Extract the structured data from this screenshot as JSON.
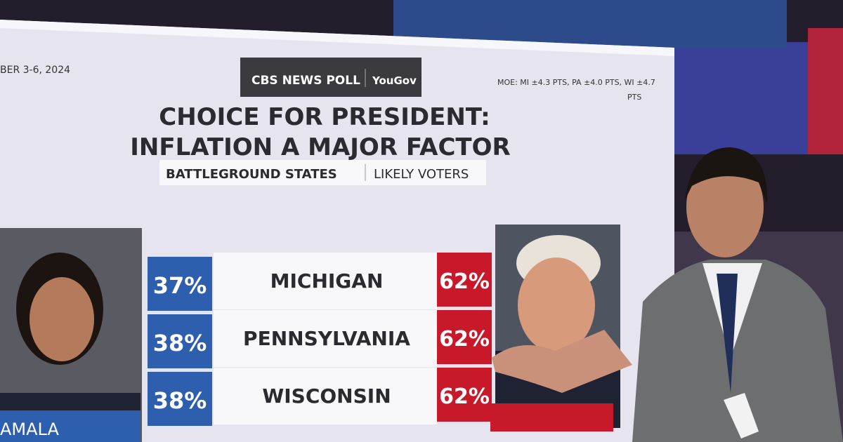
{
  "header": {
    "date": "BER 3-6, 2024",
    "logo": "CBS NEWS POLL",
    "partner": "YouGov",
    "moe_line1": "MOE: MI ±4.3 PTS, PA ±4.0 PTS, WI ±4.7",
    "moe_line2": "PTS"
  },
  "title": {
    "line1": "CHOICE FOR PRESIDENT:",
    "line2": "INFLATION A MAJOR FACTOR"
  },
  "subtitle": {
    "left": "BATTLEGROUND STATES",
    "right": "LIKELY VOTERS"
  },
  "table": {
    "rows": [
      {
        "state": "MICHIGAN",
        "harris": "37%",
        "trump": "62%"
      },
      {
        "state": "PENNSYLVANIA",
        "harris": "38%",
        "trump": "62%"
      },
      {
        "state": "WISCONSIN",
        "harris": "38%",
        "trump": "62%"
      }
    ]
  },
  "candidates": {
    "left_name": "AMALA"
  }
}
